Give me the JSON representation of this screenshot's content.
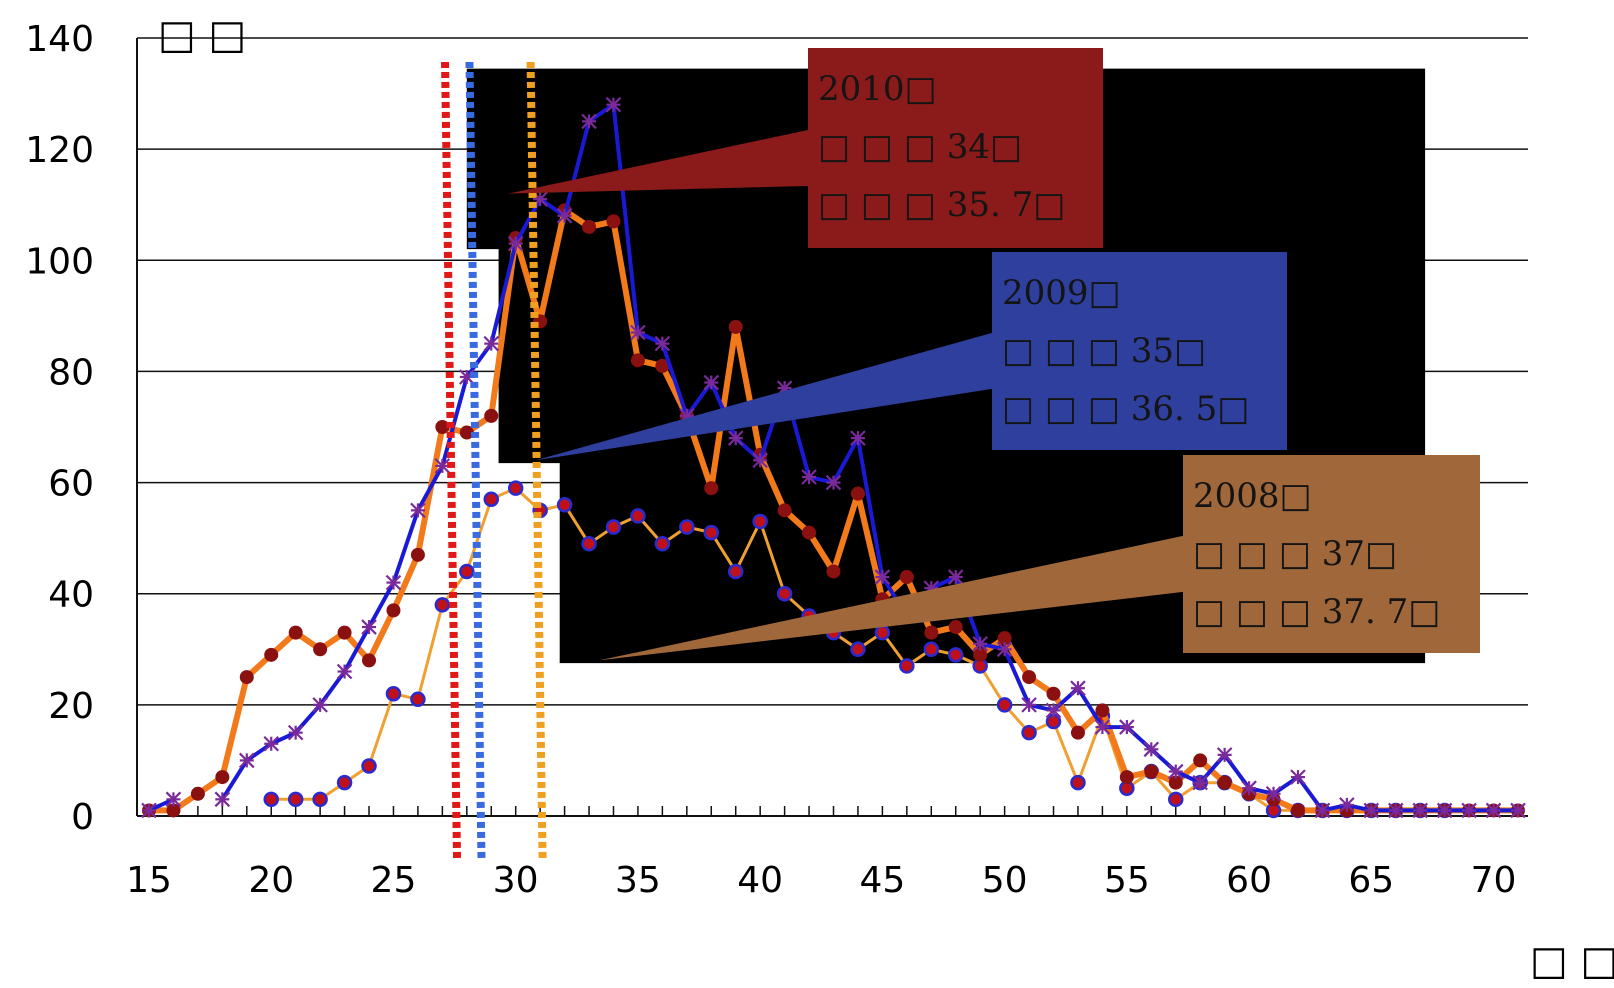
{
  "chart_data": {
    "type": "line",
    "y_unit_label": "□ □",
    "x_unit_label": "□ □",
    "xlim": [
      15,
      71
    ],
    "ylim": [
      0,
      140
    ],
    "x_ticks": [
      "15",
      "20",
      "25",
      "30",
      "35",
      "40",
      "45",
      "50",
      "55",
      "60",
      "65",
      "70"
    ],
    "y_ticks": [
      "0",
      "20",
      "40",
      "60",
      "80",
      "100",
      "120",
      "140"
    ],
    "grid": true,
    "colors": {
      "series_2010": "#f27a1a",
      "series_2010_markers": "#8b1010",
      "series_2009": "#1a1ad6",
      "series_2009_markers": "#7a2a9a",
      "series_2008": "#f0a030",
      "series_2008_markers": "#2a2ad0",
      "vline_2010": "#e01818",
      "vline_2009": "#3a6ae0",
      "vline_2008": "#f0a020",
      "callout_2010": "#8b1a1a",
      "callout_2009": "#2e3f9e",
      "callout_2008": "#a0683a"
    },
    "series": [
      {
        "key": "2010",
        "x": [
          15,
          16,
          17,
          18,
          19,
          20,
          21,
          22,
          23,
          24,
          25,
          26,
          27,
          28,
          29,
          30,
          31,
          32,
          33,
          34,
          35,
          36,
          37,
          38,
          39,
          40,
          41,
          42,
          43,
          44,
          45,
          46,
          47,
          48,
          49,
          50,
          51,
          52,
          53,
          54,
          55,
          56,
          57,
          58,
          59,
          60,
          61,
          62,
          63,
          64,
          65,
          66,
          67,
          68,
          69,
          70,
          71
        ],
        "values": [
          1,
          1,
          4,
          7,
          25,
          29,
          33,
          30,
          33,
          28,
          37,
          47,
          70,
          69,
          72,
          104,
          89,
          109,
          106,
          107,
          82,
          81,
          72,
          59,
          88,
          65,
          55,
          51,
          44,
          58,
          39,
          43,
          33,
          34,
          29,
          32,
          25,
          22,
          15,
          19,
          7,
          8,
          6,
          10,
          6,
          4,
          3,
          1,
          1,
          1,
          1,
          1,
          1,
          1,
          1,
          1,
          1
        ]
      },
      {
        "key": "2009",
        "x": [
          15,
          16,
          17,
          18,
          19,
          20,
          21,
          22,
          23,
          24,
          25,
          26,
          27,
          28,
          29,
          30,
          31,
          32,
          33,
          34,
          35,
          36,
          37,
          38,
          39,
          40,
          41,
          42,
          43,
          44,
          45,
          46,
          47,
          48,
          49,
          50,
          51,
          52,
          53,
          54,
          55,
          56,
          57,
          58,
          59,
          60,
          61,
          62,
          63,
          64,
          65,
          66,
          67,
          68,
          69,
          70,
          71
        ],
        "values": [
          1,
          3,
          null,
          3,
          10,
          13,
          15,
          20,
          26,
          34,
          42,
          55,
          63,
          79,
          85,
          103,
          111,
          108,
          125,
          128,
          87,
          85,
          72,
          78,
          68,
          64,
          77,
          61,
          60,
          68,
          43,
          36,
          41,
          43,
          31,
          30,
          20,
          19,
          23,
          16,
          16,
          12,
          8,
          6,
          11,
          5,
          4,
          7,
          1,
          2,
          1,
          1,
          1,
          1,
          1,
          1,
          1
        ]
      },
      {
        "key": "2008",
        "x": [
          20,
          21,
          22,
          23,
          24,
          25,
          26,
          27,
          28,
          29,
          30,
          31,
          32,
          33,
          34,
          35,
          36,
          37,
          38,
          39,
          40,
          41,
          42,
          43,
          44,
          45,
          46,
          47,
          48,
          49,
          50,
          51,
          52,
          53,
          54,
          55,
          56,
          57,
          58,
          59,
          60,
          61,
          62,
          63,
          64,
          65,
          66,
          67,
          68
        ],
        "values": [
          3,
          3,
          3,
          6,
          9,
          22,
          21,
          38,
          44,
          57,
          59,
          55,
          56,
          49,
          52,
          54,
          49,
          52,
          51,
          44,
          53,
          40,
          36,
          33,
          30,
          33,
          27,
          30,
          29,
          27,
          20,
          15,
          17,
          6,
          18,
          5,
          8,
          3,
          6,
          6,
          4,
          1,
          1,
          1,
          1,
          1,
          1,
          1,
          1
        ]
      }
    ],
    "vertical_lines": [
      {
        "key": "2010",
        "x": 27.6
      },
      {
        "key": "2009",
        "x": 28.6
      },
      {
        "key": "2008",
        "x": 31.1
      }
    ],
    "callouts": [
      {
        "key": "2010",
        "pointer_x": 29.7,
        "pointer_y": 112,
        "lines": [
          "2010□",
          "□ □ □ 34□",
          "□ □ □ 35. 7□"
        ]
      },
      {
        "key": "2009",
        "pointer_x": 30.8,
        "pointer_y": 64,
        "lines": [
          "2009□",
          "□ □ □ 35□",
          "□ □ □ 36. 5□"
        ]
      },
      {
        "key": "2008",
        "pointer_x": 33.4,
        "pointer_y": 28,
        "lines": [
          "2008□",
          "□ □ □ 37□",
          "□ □ □ 37. 7□"
        ]
      }
    ]
  }
}
